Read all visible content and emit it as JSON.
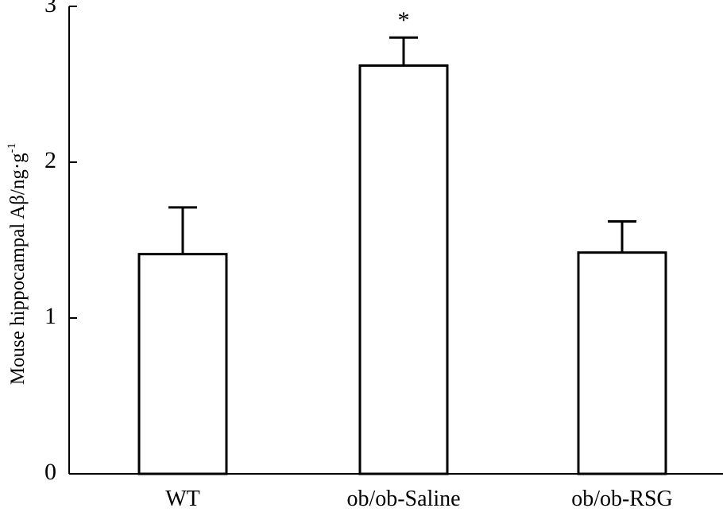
{
  "chart_data": {
    "type": "bar",
    "categories": [
      "WT",
      "ob/ob-Saline",
      "ob/ob-RSG"
    ],
    "values": [
      1.41,
      2.62,
      1.42
    ],
    "error_upper": [
      0.3,
      0.18,
      0.2
    ],
    "significance": [
      "",
      "*",
      ""
    ],
    "ylabel": "Mouse hippocampal Aβ/ng·g",
    "ylabel_superscript": "-1",
    "xlabel": "",
    "ylim": [
      0,
      3
    ],
    "yticks": [
      "0",
      "1",
      "2",
      "3"
    ],
    "grid": false,
    "bar_fill": "#ffffff",
    "bar_stroke": "#000000"
  }
}
